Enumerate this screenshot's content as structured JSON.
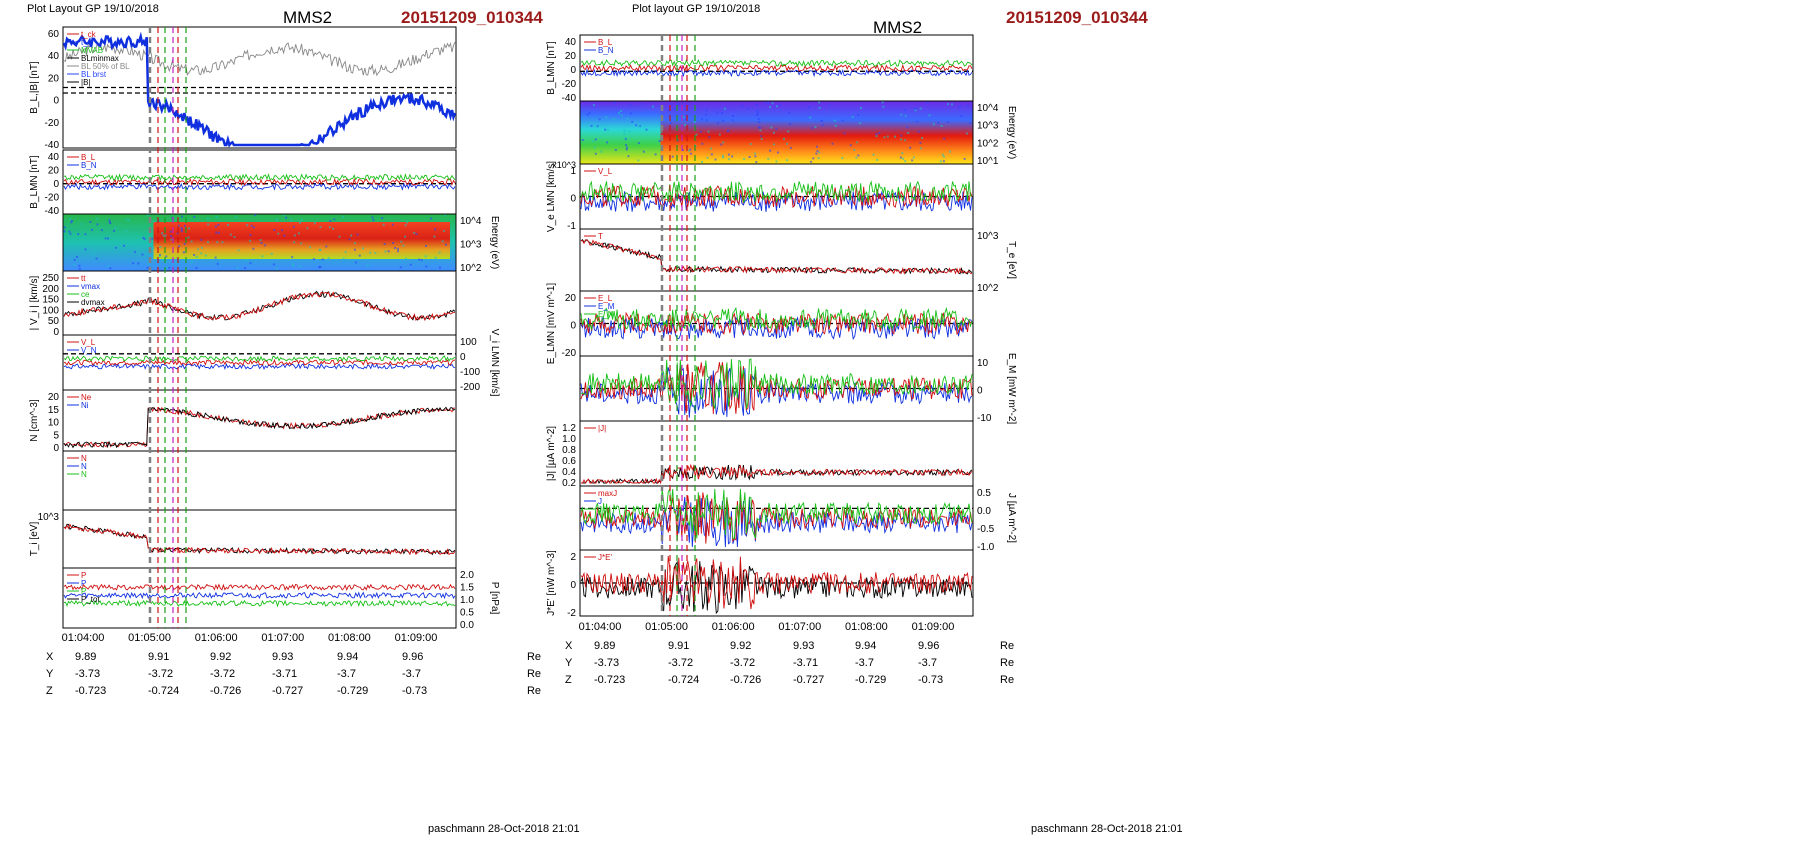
{
  "figures": [
    {
      "header_left": "Plot Layout GP 19/10/2018",
      "spacecraft": "MMS2",
      "event_id": "20151209_010344",
      "footer": "paschmann 28-Oct-2018 21:01",
      "time_ticks": [
        "01:04:00",
        "01:05:00",
        "01:06:00",
        "01:07:00",
        "01:08:00",
        "01:09:00"
      ],
      "orbit": {
        "rows": [
          {
            "label": "X",
            "values": [
              "9.89",
              "9.91",
              "9.92",
              "9.93",
              "9.94",
              "9.96"
            ],
            "unit": "Re"
          },
          {
            "label": "Y",
            "values": [
              "-3.73",
              "-3.72",
              "-3.72",
              "-3.71",
              "-3.7",
              "-3.7"
            ],
            "unit": "Re"
          },
          {
            "label": "Z",
            "values": [
              "-0.723",
              "-0.724",
              "-0.726",
              "-0.727",
              "-0.729",
              "-0.73"
            ],
            "unit": "Re"
          }
        ]
      },
      "panels": [
        {
          "id": "bl",
          "kind": "line",
          "ylabel": "B_L,|B| [nT]",
          "ylabel_side": "left",
          "yticks": [
            "60",
            "40",
            "20",
            "0",
            "-20",
            "-40"
          ],
          "ylim": [
            -50,
            60
          ],
          "legend": [
            "t_ck",
            "t_c",
            "MVAB",
            "BLminmax",
            "BL 50% of BL",
            "BL brst",
            "|B|"
          ],
          "hlines": [
            0,
            5
          ]
        },
        {
          "id": "blmn",
          "kind": "line",
          "ylabel": "B_LMN [nT]",
          "ylabel_side": "left",
          "yticks": [
            "40",
            "20",
            "0",
            "-20",
            "-40"
          ],
          "ylim": [
            -45,
            50
          ],
          "legend": [
            "B_L",
            "B_N"
          ],
          "hlines": [
            0
          ]
        },
        {
          "id": "ion_energy",
          "kind": "spectrogram",
          "ylabel": "Energy (eV)",
          "ylabel_side": "right",
          "yticks": [
            "10^4",
            "10^3",
            "10^2"
          ]
        },
        {
          "id": "vi",
          "kind": "line",
          "ylabel": "| V_i | [km/s]",
          "ylabel_side": "left",
          "yticks": [
            "250",
            "200",
            "150",
            "100",
            "50",
            "0"
          ],
          "ylim": [
            0,
            260
          ],
          "legend": [
            "tt",
            "vmax",
            "ce",
            "dvmax"
          ]
        },
        {
          "id": "vilmn",
          "kind": "line",
          "ylabel": "V_i LMN [km/s]",
          "ylabel_side": "right",
          "yticks": [
            "100",
            "0",
            "-100",
            "-200"
          ],
          "ylim": [
            -250,
            130
          ],
          "legend": [
            "V_L",
            "V_N"
          ],
          "hlines": [
            0
          ]
        },
        {
          "id": "density",
          "kind": "line",
          "ylabel": "N [cm^-3]",
          "ylabel_side": "left",
          "yticks": [
            "20",
            "15",
            "10",
            "5",
            "0"
          ],
          "ylim": [
            0,
            22
          ],
          "legend": [
            "Ne",
            "Ni"
          ]
        },
        {
          "id": "angles",
          "kind": "line",
          "ylabel": "",
          "ylabel_side": "left",
          "yticks": [],
          "legend": [
            "N",
            "N",
            "N"
          ]
        },
        {
          "id": "ti",
          "kind": "line",
          "ylabel": "T_i [eV]",
          "ylabel_side": "left",
          "yticks": [
            "10^3"
          ]
        },
        {
          "id": "pressure",
          "kind": "line",
          "ylabel": "P [nPa]",
          "ylabel_side": "right",
          "yticks": [
            "2.0",
            "1.5",
            "1.0",
            "0.5",
            "0.0"
          ],
          "ylim": [
            0,
            2.1
          ],
          "legend": [
            "P",
            "P",
            "P",
            "P_tot"
          ]
        }
      ]
    },
    {
      "header_left": "Plot layout GP 19/10/2018",
      "spacecraft": "MMS2",
      "event_id": "20151209_010344",
      "footer": "paschmann 28-Oct-2018 21:01",
      "time_ticks": [
        "01:04:00",
        "01:05:00",
        "01:06:00",
        "01:07:00",
        "01:08:00",
        "01:09:00"
      ],
      "orbit": {
        "rows": [
          {
            "label": "X",
            "values": [
              "9.89",
              "9.91",
              "9.92",
              "9.93",
              "9.94",
              "9.96"
            ],
            "unit": "Re"
          },
          {
            "label": "Y",
            "values": [
              "-3.73",
              "-3.72",
              "-3.72",
              "-3.71",
              "-3.7",
              "-3.7"
            ],
            "unit": "Re"
          },
          {
            "label": "Z",
            "values": [
              "-0.723",
              "-0.724",
              "-0.726",
              "-0.727",
              "-0.729",
              "-0.73"
            ],
            "unit": "Re"
          }
        ]
      },
      "panels": [
        {
          "id": "blmn2",
          "kind": "line",
          "ylabel": "B_LMN [nT]",
          "ylabel_side": "left",
          "yticks": [
            "40",
            "20",
            "0",
            "-20",
            "-40"
          ],
          "ylim": [
            -45,
            55
          ],
          "legend": [
            "B_L",
            "B_N"
          ],
          "hlines": [
            0
          ]
        },
        {
          "id": "e_energy",
          "kind": "spectrogram",
          "ylabel": "Energy (eV)",
          "ylabel_side": "right",
          "yticks": [
            "10^4",
            "10^3",
            "10^2",
            "10^1"
          ]
        },
        {
          "id": "velmn",
          "kind": "line",
          "ylabel": "V_e LMN [km/s]",
          "ylabel_side": "left",
          "scale_note": "x10^3",
          "yticks": [
            "1",
            "0",
            "-1"
          ],
          "ylim": [
            -1.5,
            1.5
          ],
          "legend": [
            "V_L"
          ],
          "hlines": [
            0
          ]
        },
        {
          "id": "te",
          "kind": "line",
          "ylabel": "T_e [eV]",
          "ylabel_side": "right",
          "yticks": [
            "10^3",
            "10^2"
          ],
          "legend": [
            "T"
          ]
        },
        {
          "id": "elmn",
          "kind": "line",
          "ylabel": "E_LMN [mV m^-1]",
          "ylabel_side": "left",
          "yticks": [
            "20",
            "0",
            "-20"
          ],
          "ylim": [
            -35,
            35
          ],
          "legend": [
            "E_L",
            "E_M",
            "E_N"
          ],
          "hlines": [
            0
          ]
        },
        {
          "id": "em",
          "kind": "line",
          "ylabel": "E_M [mW m^-2]",
          "ylabel_side": "right",
          "yticks": [
            "10",
            "0",
            "-10"
          ],
          "ylim": [
            -15,
            15
          ],
          "hlines": [
            0
          ]
        },
        {
          "id": "jmag",
          "kind": "line",
          "ylabel": "|J| [µA m^-2]",
          "ylabel_side": "left",
          "yticks": [
            "1.2",
            "1.0",
            "0.8",
            "0.6",
            "0.4",
            "0.2"
          ],
          "ylim": [
            0,
            1.25
          ],
          "legend": [
            "|J|"
          ]
        },
        {
          "id": "jlmn",
          "kind": "line",
          "ylabel": "J [µA m^-2]",
          "ylabel_side": "right",
          "yticks": [
            "0.5",
            "0.0",
            "-0.5",
            "-1.0"
          ],
          "ylim": [
            -1.3,
            0.7
          ],
          "legend": [
            "maxJ",
            "J",
            "J"
          ],
          "hlines": [
            0
          ]
        },
        {
          "id": "je",
          "kind": "line",
          "ylabel": "J*E' [nW m^-3]",
          "ylabel_side": "left",
          "yticks": [
            "2",
            "0",
            "-2"
          ],
          "ylim": [
            -3,
            3
          ],
          "legend": [
            "J*E'"
          ],
          "hlines": [
            0
          ]
        }
      ]
    }
  ]
}
